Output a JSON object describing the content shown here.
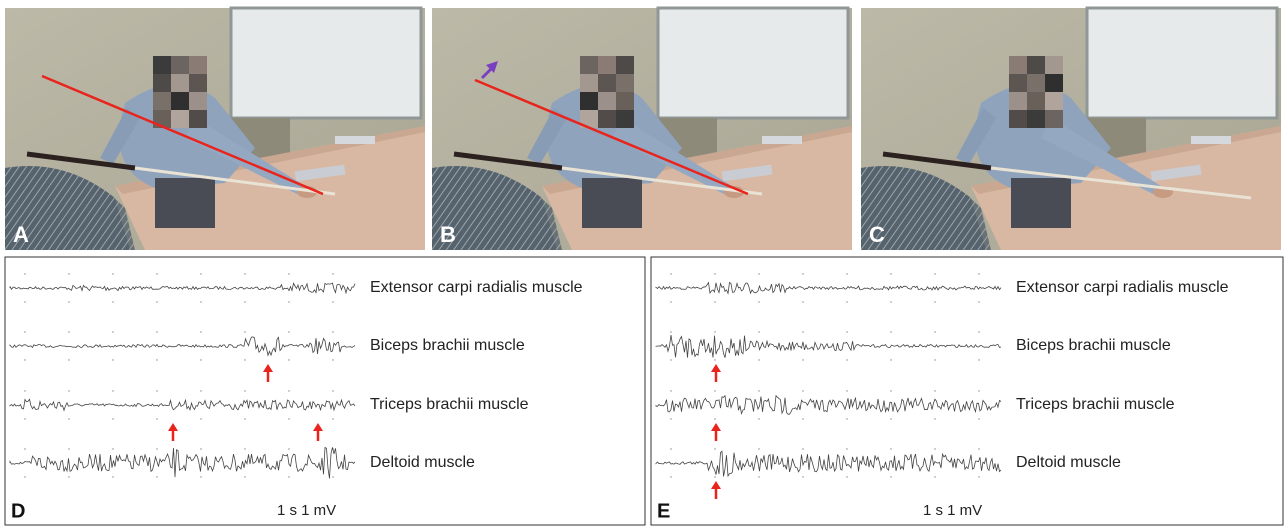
{
  "photos": [
    {
      "label": "A"
    },
    {
      "label": "B"
    },
    {
      "label": "C"
    }
  ],
  "emg_panels": [
    {
      "label": "D",
      "muscles": [
        "Extensor carpi radialis muscle",
        "Biceps brachii muscle",
        "Triceps brachii muscle",
        "Deltoid muscle"
      ],
      "scale": "1 s 1 mV"
    },
    {
      "label": "E",
      "muscles": [
        "Extensor carpi radialis muscle",
        "Biceps brachii muscle",
        "Triceps brachii muscle",
        "Deltoid muscle"
      ],
      "scale": "1 s 1 mV"
    }
  ]
}
